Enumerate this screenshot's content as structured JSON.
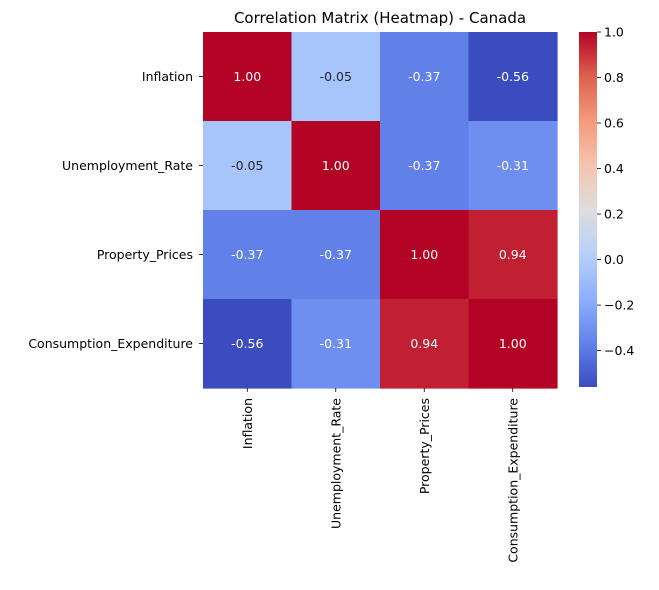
{
  "chart_data": {
    "type": "heatmap",
    "title": "Correlation Matrix (Heatmap) - Canada",
    "xlabel": "",
    "ylabel": "",
    "row_labels": [
      "Inflation",
      "Unemployment_Rate",
      "Property_Prices",
      "Consumption_Expenditure"
    ],
    "col_labels": [
      "Inflation",
      "Unemployment_Rate",
      "Property_Prices",
      "Consumption_Expenditure"
    ],
    "values": [
      [
        1.0,
        -0.05,
        -0.37,
        -0.56
      ],
      [
        -0.05,
        1.0,
        -0.37,
        -0.31
      ],
      [
        -0.37,
        -0.37,
        1.0,
        0.94
      ],
      [
        -0.56,
        -0.31,
        0.94,
        1.0
      ]
    ],
    "annotation_format": "0.00",
    "colormap": "coolwarm",
    "colorbar": {
      "range": [
        -0.56,
        1.0
      ],
      "ticks": [
        -0.4,
        -0.2,
        0.0,
        0.2,
        0.4,
        0.6,
        0.8,
        1.0
      ],
      "tick_labels": [
        "−0.4",
        "−0.2",
        "0.0",
        "0.2",
        "0.4",
        "0.6",
        "0.8",
        "1.0"
      ]
    }
  }
}
